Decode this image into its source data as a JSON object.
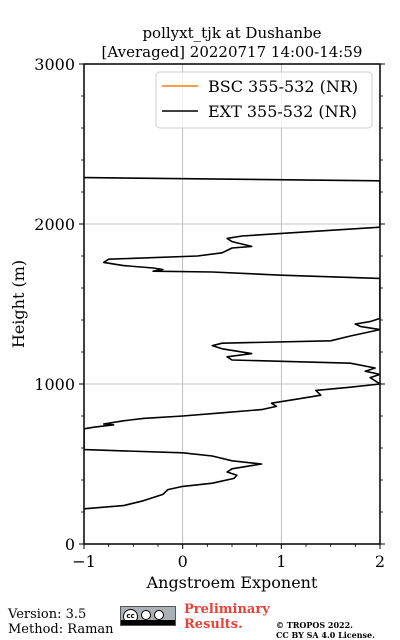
{
  "chart_data": {
    "type": "line",
    "title": "pollyxt_tjk at Dushanbe",
    "subtitle": "[Averaged] 20220717 14:00-14:59",
    "xlabel": "Angstroem Exponent",
    "ylabel": "Height (m)",
    "xlim": [
      -1,
      2
    ],
    "ylim": [
      0,
      3000
    ],
    "x_ticks": [
      -1,
      0,
      1,
      2
    ],
    "x_tick_labels": [
      "−1",
      "0",
      "1",
      "2"
    ],
    "y_ticks": [
      0,
      1000,
      2000,
      3000
    ],
    "y_tick_labels": [
      "0",
      "1000",
      "2000",
      "3000"
    ],
    "grid": true,
    "legend_position": "top-right",
    "series": [
      {
        "name": "BSC 355-532 (NR)",
        "color": "#ff7f0e",
        "points": []
      },
      {
        "name": "EXT 355-532 (NR)",
        "color": "#000000",
        "points": [
          [
            -1.0,
            220
          ],
          [
            -0.6,
            240
          ],
          [
            -0.4,
            270
          ],
          [
            -0.2,
            310
          ],
          [
            -0.15,
            340
          ],
          [
            0.0,
            360
          ],
          [
            0.3,
            380
          ],
          [
            0.52,
            410
          ],
          [
            0.55,
            430
          ],
          [
            0.45,
            450
          ],
          [
            0.5,
            470
          ],
          [
            0.7,
            490
          ],
          [
            0.8,
            500
          ],
          [
            0.5,
            520
          ],
          [
            0.3,
            550
          ],
          [
            0.0,
            570
          ],
          [
            -1.0,
            590
          ],
          [
            -1.0,
            720
          ],
          [
            -0.9,
            730
          ],
          [
            -0.7,
            745
          ],
          [
            -0.8,
            750
          ],
          [
            -0.6,
            770
          ],
          [
            -0.4,
            785
          ],
          [
            0.0,
            800
          ],
          [
            0.4,
            820
          ],
          [
            0.8,
            840
          ],
          [
            0.95,
            860
          ],
          [
            0.9,
            880
          ],
          [
            1.2,
            910
          ],
          [
            1.4,
            930
          ],
          [
            1.35,
            960
          ],
          [
            1.7,
            980
          ],
          [
            2.0,
            1000
          ],
          [
            1.9,
            1040
          ],
          [
            2.0,
            1060
          ],
          [
            1.85,
            1080
          ],
          [
            1.95,
            1100
          ],
          [
            1.7,
            1130
          ],
          [
            0.5,
            1150
          ],
          [
            0.45,
            1170
          ],
          [
            0.7,
            1190
          ],
          [
            0.4,
            1220
          ],
          [
            0.3,
            1240
          ],
          [
            0.4,
            1255
          ],
          [
            1.5,
            1270
          ],
          [
            1.7,
            1300
          ],
          [
            2.0,
            1340
          ],
          [
            1.8,
            1360
          ],
          [
            1.75,
            1375
          ],
          [
            1.9,
            1390
          ],
          [
            2.0,
            1410
          ],
          [
            2.0,
            1660
          ],
          [
            1.0,
            1680
          ],
          [
            0.3,
            1700
          ],
          [
            -0.3,
            1705
          ],
          [
            -0.2,
            1715
          ],
          [
            -0.3,
            1725
          ],
          [
            -0.6,
            1740
          ],
          [
            -0.8,
            1760
          ],
          [
            -0.75,
            1780
          ],
          [
            0.15,
            1800
          ],
          [
            0.4,
            1820
          ],
          [
            0.5,
            1850
          ],
          [
            0.7,
            1860
          ],
          [
            0.5,
            1890
          ],
          [
            0.45,
            1910
          ],
          [
            0.6,
            1925
          ],
          [
            2.0,
            1980
          ],
          [
            2.0,
            2270
          ],
          [
            -1.0,
            2290
          ]
        ]
      }
    ]
  },
  "footer": {
    "version": "Version: 3.5",
    "method": "Method: Raman",
    "preliminary_line1": "Preliminary",
    "preliminary_line2": "Results.",
    "copyright_line1": "© TROPOS 2022.",
    "copyright_line2": "CC BY SA 4.0 License.",
    "license_badge_text": "cc"
  }
}
